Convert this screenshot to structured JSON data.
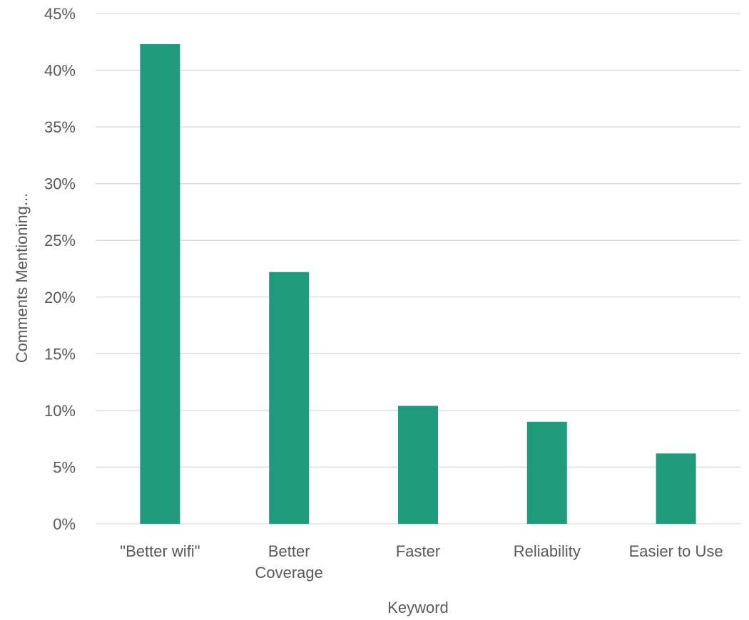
{
  "chart_data": {
    "type": "bar",
    "title": "",
    "categories": [
      "\"Better wifi\"",
      "Better Coverage",
      "Faster",
      "Reliability",
      "Easier to Use"
    ],
    "category_lines": [
      [
        "\"Better wifi\""
      ],
      [
        "Better",
        "Coverage"
      ],
      [
        "Faster"
      ],
      [
        "Reliability"
      ],
      [
        "Easier to Use"
      ]
    ],
    "values": [
      0.423,
      0.222,
      0.104,
      0.09,
      0.062
    ],
    "xlabel": "Keyword",
    "ylabel": "Comments Mentioning...",
    "ylim": [
      0,
      0.45
    ],
    "yticks": [
      0,
      0.05,
      0.1,
      0.15,
      0.2,
      0.25,
      0.3,
      0.35,
      0.4,
      0.45
    ],
    "ytick_labels": [
      "0%",
      "5%",
      "10%",
      "15%",
      "20%",
      "25%",
      "30%",
      "35%",
      "40%",
      "45%"
    ],
    "grid": true,
    "legend": "none",
    "colors": {
      "bar": "#1f9b7b",
      "grid": "#d9d9d9",
      "text": "#595959"
    }
  }
}
